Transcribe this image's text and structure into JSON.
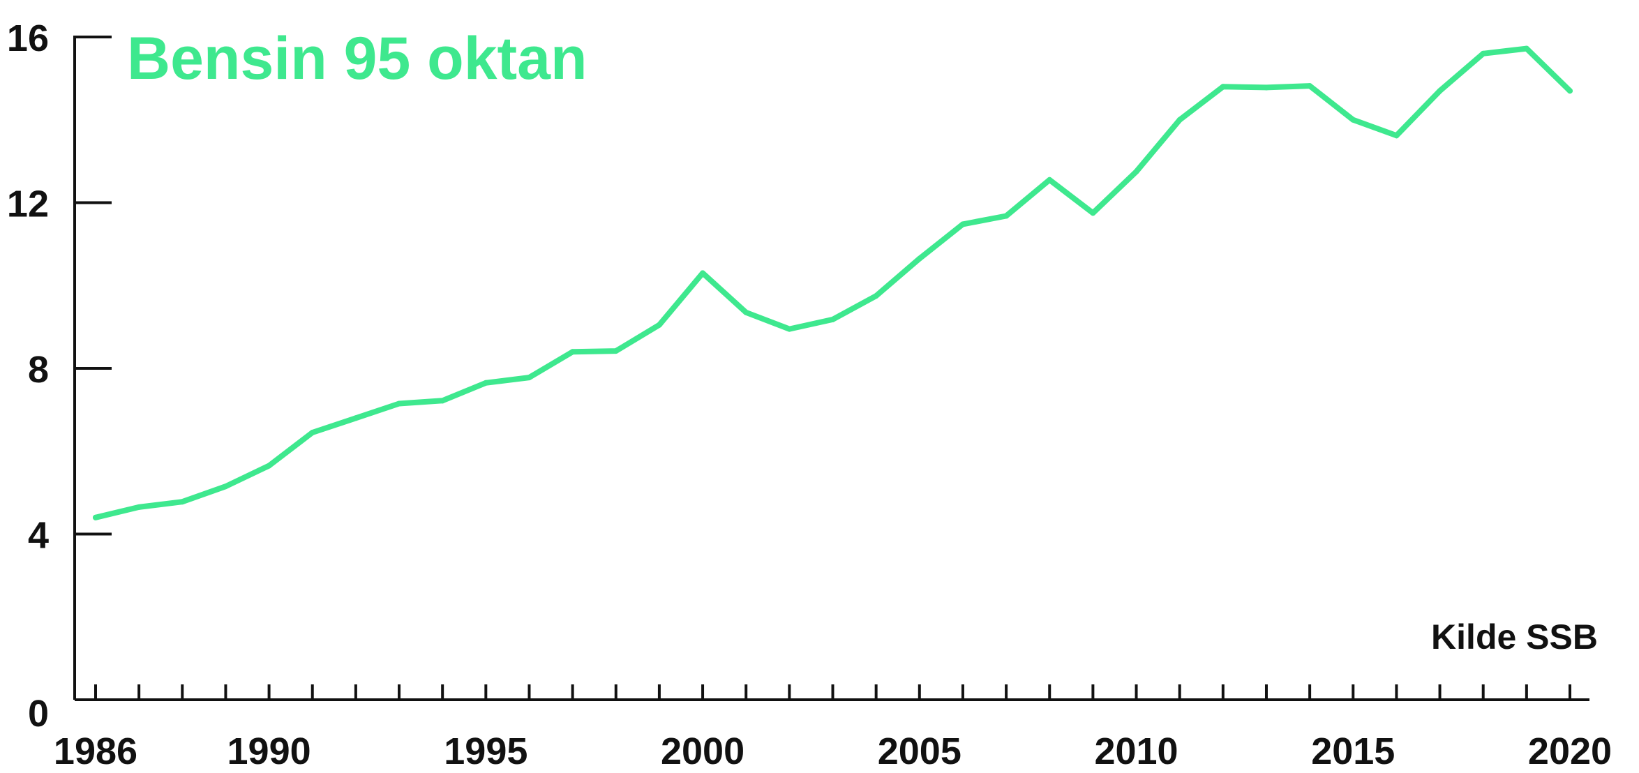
{
  "chart_data": {
    "type": "line",
    "title": "Bensin 95 oktan",
    "source": "Kilde SSB",
    "xlabel": "",
    "ylabel": "",
    "x": [
      1986,
      1987,
      1988,
      1989,
      1990,
      1991,
      1992,
      1993,
      1994,
      1995,
      1996,
      1997,
      1998,
      1999,
      2000,
      2001,
      2002,
      2003,
      2004,
      2005,
      2006,
      2007,
      2008,
      2009,
      2010,
      2011,
      2012,
      2013,
      2014,
      2015,
      2016,
      2017,
      2018,
      2019,
      2020
    ],
    "series": [
      {
        "values": [
          4.4,
          4.65,
          4.78,
          5.15,
          5.65,
          6.45,
          6.8,
          7.15,
          7.22,
          7.65,
          7.78,
          8.4,
          8.42,
          9.05,
          10.3,
          9.35,
          8.95,
          9.18,
          9.75,
          10.65,
          11.48,
          11.68,
          12.55,
          11.75,
          12.75,
          14.0,
          14.8,
          14.78,
          14.82,
          14.0,
          13.62,
          14.7,
          15.6,
          15.72,
          14.7
        ]
      }
    ],
    "xticks": [
      "1986",
      "1990",
      "1995",
      "2000",
      "2005",
      "2010",
      "2015",
      "2020"
    ],
    "yticks": [
      "0",
      "4",
      "8",
      "12",
      "16"
    ],
    "xlim": [
      1986,
      2020
    ],
    "ylim": [
      0,
      16
    ],
    "grid": false,
    "legend": "none",
    "colors": {
      "line": "#3ee88e",
      "title": "#3ee88e",
      "axis": "#111111"
    }
  }
}
